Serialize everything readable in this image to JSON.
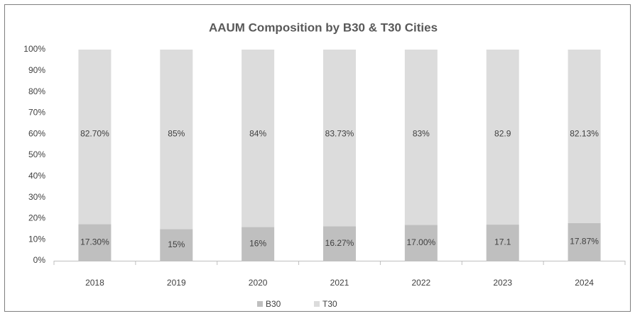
{
  "chart_data": {
    "type": "stacked_bar",
    "title": "AAUM Composition by B30 & T30 Cities",
    "categories": [
      "2018",
      "2019",
      "2020",
      "2021",
      "2022",
      "2023",
      "2024"
    ],
    "series": [
      {
        "name": "B30",
        "color": "#bfbfbf",
        "values": [
          17.3,
          15,
          16,
          16.27,
          17,
          17.1,
          17.87
        ],
        "value_labels": [
          "17.30%",
          "15%",
          "16%",
          "16.27%",
          "17.00%",
          "17.1",
          "17.87%"
        ]
      },
      {
        "name": "T30",
        "color": "#dcdcdc",
        "values": [
          82.7,
          85,
          84,
          83.73,
          83,
          82.9,
          82.13
        ],
        "value_labels": [
          "82.70%",
          "85%",
          "84%",
          "83.73%",
          "83%",
          "82.9",
          "82.13%"
        ]
      }
    ],
    "ylim": [
      0,
      100
    ],
    "yticks": [
      {
        "value": 0,
        "label": "0%"
      },
      {
        "value": 10,
        "label": "10%"
      },
      {
        "value": 20,
        "label": "20%"
      },
      {
        "value": 30,
        "label": "30%"
      },
      {
        "value": 40,
        "label": "40%"
      },
      {
        "value": 50,
        "label": "50%"
      },
      {
        "value": 60,
        "label": "60%"
      },
      {
        "value": 70,
        "label": "70%"
      },
      {
        "value": 80,
        "label": "80%"
      },
      {
        "value": 90,
        "label": "90%"
      },
      {
        "value": 100,
        "label": "100%"
      }
    ],
    "legend": "bottom"
  }
}
